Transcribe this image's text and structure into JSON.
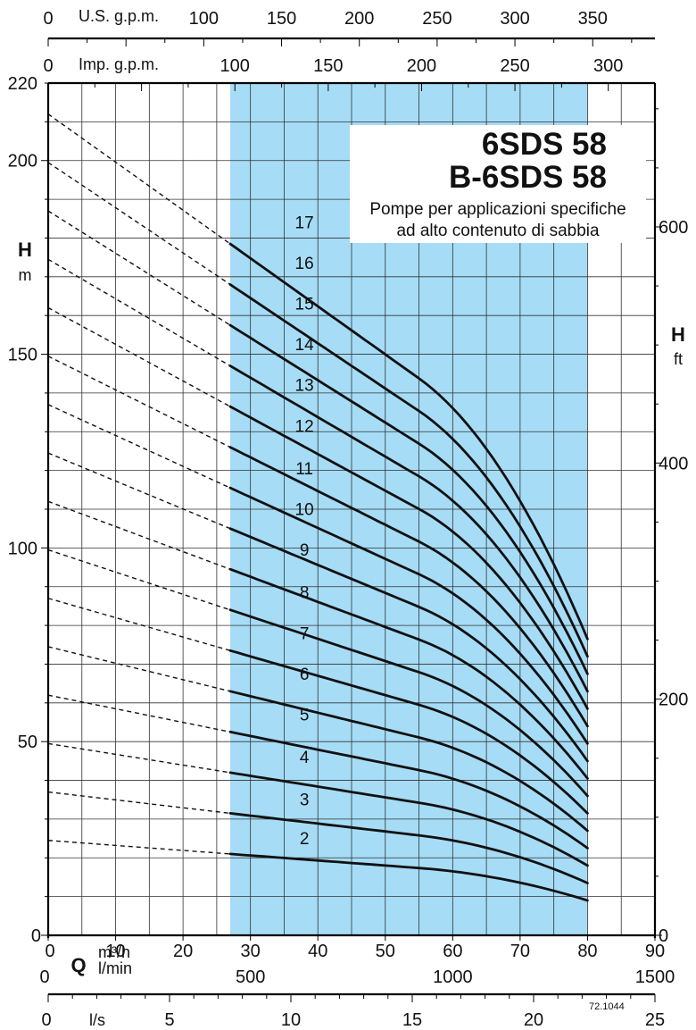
{
  "chart_data": {
    "type": "line",
    "title": "6SDS 58",
    "title2": "B-6SDS 58",
    "subtitle1": "Pompe per applicazioni specifiche",
    "subtitle2": "ad alto contenuto di sabbia",
    "code": "72.1044",
    "grid": true,
    "colors": {
      "region": "#a6dcf6",
      "curve": "#111111",
      "grid": "#333333"
    },
    "x_axis": {
      "label": "Q",
      "unit_main": "m³/h",
      "unit_lmin": "l/min",
      "range": [
        0,
        90
      ],
      "ticks": [
        "0",
        "10",
        "20",
        "30",
        "40",
        "50",
        "60",
        "70",
        "80",
        "90"
      ],
      "tick_values": [
        0,
        10,
        20,
        30,
        40,
        50,
        60,
        70,
        80,
        90
      ]
    },
    "lmin_axis": {
      "ticks": [
        "0",
        "500",
        "1000",
        "1500"
      ],
      "tick_values": [
        0,
        500,
        1000,
        1500
      ]
    },
    "ls_axis": {
      "unit": "l/s",
      "ticks": [
        "0",
        "5",
        "10",
        "15",
        "20",
        "25"
      ],
      "tick_values": [
        0,
        5,
        10,
        15,
        20,
        25
      ]
    },
    "usgpm_axis": {
      "unit": "U.S. g.p.m.",
      "ticks": [
        "0",
        "100",
        "150",
        "200",
        "250",
        "300",
        "350"
      ],
      "tick_values": [
        0,
        100,
        150,
        200,
        250,
        300,
        350
      ]
    },
    "impgpm_axis": {
      "unit": "Imp. g.p.m.",
      "ticks": [
        "0",
        "100",
        "150",
        "200",
        "250",
        "300"
      ],
      "tick_values": [
        0,
        100,
        150,
        200,
        250,
        300
      ]
    },
    "y_axis": {
      "label": "H",
      "unit": "m",
      "range": [
        0,
        220
      ],
      "ticks": [
        "0",
        "50",
        "100",
        "150",
        "200",
        "220"
      ],
      "tick_values": [
        0,
        50,
        100,
        150,
        200,
        220
      ]
    },
    "y_ft_axis": {
      "label": "H",
      "unit": "ft",
      "ticks": [
        "0",
        "200",
        "400",
        "600"
      ],
      "tick_values": [
        0,
        200,
        400,
        600
      ]
    },
    "operating_range": [
      27,
      80
    ],
    "stage_label_x": 38,
    "series": [
      {
        "name": "2",
        "shutoff": 24.5,
        "start": 21.0,
        "end": 9.0,
        "label_h": 23.5
      },
      {
        "name": "3",
        "shutoff": 37.0,
        "start": 31.5,
        "end": 13.5,
        "label_h": 33.5
      },
      {
        "name": "4",
        "shutoff": 49.5,
        "start": 42.0,
        "end": 18.0,
        "label_h": 44.5
      },
      {
        "name": "5",
        "shutoff": 62.0,
        "start": 52.5,
        "end": 22.5,
        "label_h": 55.5
      },
      {
        "name": "6",
        "shutoff": 74.5,
        "start": 63.0,
        "end": 27.0,
        "label_h": 66.0
      },
      {
        "name": "7",
        "shutoff": 87.0,
        "start": 73.5,
        "end": 31.5,
        "label_h": 76.5
      },
      {
        "name": "8",
        "shutoff": 99.5,
        "start": 84.0,
        "end": 36.0,
        "label_h": 87.0
      },
      {
        "name": "9",
        "shutoff": 112.0,
        "start": 94.5,
        "end": 40.5,
        "label_h": 98.0
      },
      {
        "name": "10",
        "shutoff": 124.5,
        "start": 105.0,
        "end": 45.0,
        "label_h": 108.5
      },
      {
        "name": "11",
        "shutoff": 137.0,
        "start": 115.5,
        "end": 49.5,
        "label_h": 119.0
      },
      {
        "name": "12",
        "shutoff": 149.5,
        "start": 126.0,
        "end": 54.0,
        "label_h": 130.0
      },
      {
        "name": "13",
        "shutoff": 162.0,
        "start": 136.5,
        "end": 58.5,
        "label_h": 140.5
      },
      {
        "name": "14",
        "shutoff": 174.5,
        "start": 147.0,
        "end": 63.0,
        "label_h": 151.0
      },
      {
        "name": "15",
        "shutoff": 187.0,
        "start": 157.5,
        "end": 67.5,
        "label_h": 161.5
      },
      {
        "name": "16",
        "shutoff": 199.5,
        "start": 168.0,
        "end": 72.0,
        "label_h": 172.0
      },
      {
        "name": "17",
        "shutoff": 212.0,
        "start": 178.5,
        "end": 76.5,
        "label_h": 182.5
      }
    ]
  }
}
